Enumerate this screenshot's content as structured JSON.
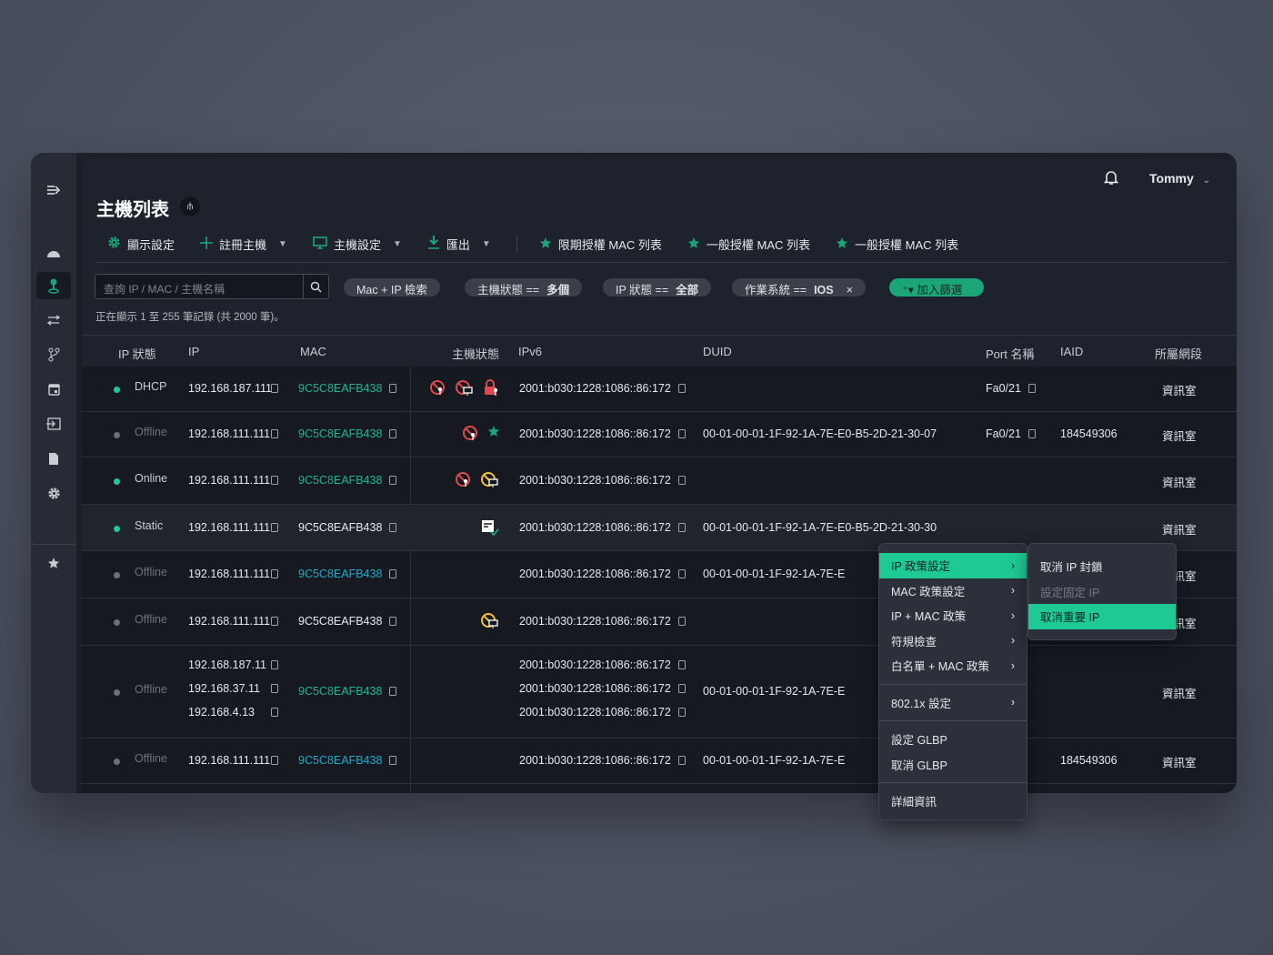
{
  "colors": {
    "accent": "#1da57a",
    "mac_green": "#1fb58a",
    "mac_blue": "#22a8c9",
    "danger": "#e0494b",
    "warning": "#f0c23a"
  },
  "sidebar": {
    "items": [
      {
        "icon": "collapse-menu-icon"
      },
      {
        "icon": "dashboard-gauge-icon"
      },
      {
        "icon": "host-pin-icon",
        "active": true
      },
      {
        "icon": "switch-arrows-icon"
      },
      {
        "icon": "branch-icon"
      },
      {
        "icon": "calendar-icon"
      },
      {
        "icon": "login-icon"
      },
      {
        "icon": "document-icon"
      },
      {
        "icon": "gear-icon"
      },
      {
        "icon": "star-icon"
      }
    ]
  },
  "header": {
    "title": "主機列表",
    "user": "Tommy"
  },
  "toolbar": [
    {
      "label": "顯示設定",
      "icon": "gear-icon",
      "dropdown": false
    },
    {
      "label": "註冊主機",
      "icon": "plus-icon",
      "dropdown": true
    },
    {
      "label": "主機設定",
      "icon": "monitor-icon",
      "dropdown": true
    },
    {
      "label": "匯出",
      "icon": "download-icon",
      "dropdown": true
    },
    {
      "label": "限期授權 MAC 列表",
      "icon": "star-icon"
    },
    {
      "label": "一般授權 MAC 列表",
      "icon": "star-icon"
    },
    {
      "label": "一般授權 MAC 列表",
      "icon": "star-icon"
    }
  ],
  "search": {
    "placeholder": "查詢 IP / MAC / 主機名稱"
  },
  "filters": [
    {
      "label": "Mac + IP 檢索",
      "value": ""
    },
    {
      "label": "主機狀態 ==",
      "value": "多個"
    },
    {
      "label": "IP 狀態 ==",
      "value": "全部"
    },
    {
      "label": "作業系統 ==",
      "value": "IOS",
      "close": "×"
    }
  ],
  "add_filter": "加入篩選",
  "record_count": "正在顯示 1 至 255 筆記錄 (共 2000 筆)。",
  "columns": [
    "IP 狀態",
    "IP",
    "MAC",
    "主機狀態",
    "IPv6",
    "DUID",
    "Port 名稱",
    "IAID",
    "所屬網段"
  ],
  "rows": [
    {
      "status": "DHCP",
      "online": true,
      "ips": [
        "192.168.187.111"
      ],
      "mac": "9C5C8EAFB438",
      "mac_color": "green",
      "icons": [
        "ban-pin-icon",
        "ban-monitor-icon",
        "lock-pin-icon"
      ],
      "ipv6": [
        "2001:b030:1228:1086::86:172"
      ],
      "duid": "",
      "port": "Fa0/21",
      "iaid": "",
      "segment": "資訊室"
    },
    {
      "status": "Offline",
      "online": false,
      "ips": [
        "192.168.111.111"
      ],
      "mac": "9C5C8EAFB438",
      "mac_color": "green",
      "icons": [
        "ban-pin-icon",
        "star-icon"
      ],
      "ipv6": [
        "2001:b030:1228:1086::86:172"
      ],
      "duid": "00-01-00-01-1F-92-1A-7E-E0-B5-2D-21-30-07",
      "port": "Fa0/21",
      "iaid": "184549306",
      "segment": "資訊室"
    },
    {
      "status": "Online",
      "online": true,
      "ips": [
        "192.168.111.111"
      ],
      "mac": "9C5C8EAFB438",
      "mac_color": "green",
      "icons": [
        "ban-pin-icon",
        "ban-monitor-warning-icon"
      ],
      "ipv6": [
        "2001:b030:1228:1086::86:172"
      ],
      "duid": "",
      "port": "",
      "iaid": "",
      "segment": "資訊室"
    },
    {
      "status": "Static",
      "online": true,
      "ips": [
        "192.168.111.111"
      ],
      "mac": "9C5C8EAFB438",
      "mac_color": "white",
      "icons": [
        "document-check-icon"
      ],
      "ipv6": [
        "2001:b030:1228:1086::86:172"
      ],
      "duid": "00-01-00-01-1F-92-1A-7E-E0-B5-2D-21-30-30",
      "port": "",
      "iaid": "",
      "segment": "資訊室",
      "highlighted": true
    },
    {
      "status": "Offline",
      "online": false,
      "ips": [
        "192.168.111.111"
      ],
      "mac": "9C5C8EAFB438",
      "mac_color": "blue",
      "icons": [],
      "ipv6": [
        "2001:b030:1228:1086::86:172"
      ],
      "duid": "00-01-00-01-1F-92-1A-7E-E",
      "port": "",
      "iaid": "",
      "segment": "資訊室"
    },
    {
      "status": "Offline",
      "online": false,
      "ips": [
        "192.168.111.111"
      ],
      "mac": "9C5C8EAFB438",
      "mac_color": "white",
      "icons": [
        "ban-monitor-warning-icon"
      ],
      "ipv6": [
        "2001:b030:1228:1086::86:172"
      ],
      "duid": "",
      "port": "",
      "iaid": "",
      "segment": "資訊室"
    },
    {
      "status": "Offline",
      "online": false,
      "ips": [
        "192.168.187.11",
        "192.168.37.11",
        "192.168.4.13"
      ],
      "mac": "9C5C8EAFB438",
      "mac_color": "green",
      "icons": [],
      "ipv6": [
        "2001:b030:1228:1086::86:172",
        "2001:b030:1228:1086::86:172",
        "2001:b030:1228:1086::86:172"
      ],
      "duid": "00-01-00-01-1F-92-1A-7E-E",
      "port": "",
      "iaid": "",
      "segment": "資訊室"
    },
    {
      "status": "Offline",
      "online": false,
      "ips": [
        "192.168.111.111"
      ],
      "mac": "9C5C8EAFB438",
      "mac_color": "blue",
      "icons": [],
      "ipv6": [
        "2001:b030:1228:1086::86:172"
      ],
      "duid": "00-01-00-01-1F-92-1A-7E-E",
      "port": "",
      "iaid": "184549306",
      "segment": "資訊室"
    }
  ],
  "context_menu": {
    "groups": [
      [
        "IP 政策設定",
        "MAC 政策設定",
        "IP + MAC 政策",
        "符規檢查",
        "白名單 + MAC 政策"
      ],
      [
        "802.1x 設定"
      ],
      [
        "設定 GLBP",
        "取消 GLBP"
      ],
      [
        "詳細資訊"
      ]
    ],
    "has_submenu": [
      "IP 政策設定",
      "MAC 政策設定",
      "IP + MAC 政策",
      "符規檢查",
      "白名單 + MAC 政策",
      "802.1x 設定"
    ],
    "active": "IP 政策設定"
  },
  "submenu": {
    "items": [
      "取消 IP 封鎖",
      "設定固定 IP",
      "取消重要 IP"
    ],
    "disabled": [
      "設定固定 IP"
    ],
    "active": "取消重要 IP"
  }
}
